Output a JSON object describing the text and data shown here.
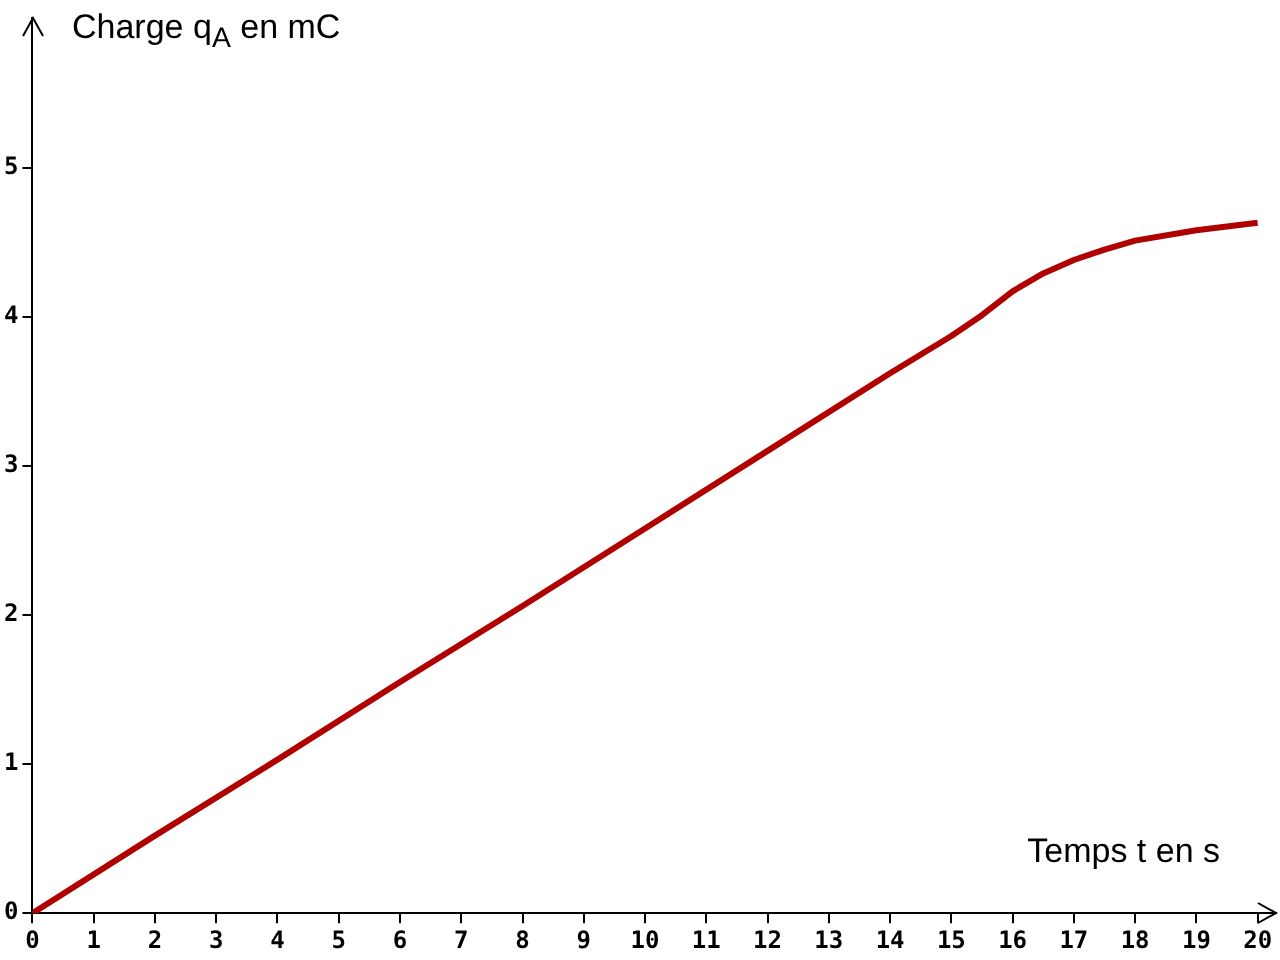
{
  "chart_data": {
    "type": "line",
    "xlabel": "Temps t en s",
    "ylabel": "Charge q$_{A}$ en mC",
    "x": [
      0,
      2,
      4,
      6,
      8,
      10,
      12,
      14,
      15,
      15.5,
      16,
      16.5,
      17,
      17.5,
      18,
      19,
      20
    ],
    "series": [
      {
        "color": "#b00000",
        "values": [
          0,
          0.52,
          1.03,
          1.55,
          2.06,
          2.58,
          3.1,
          3.62,
          3.87,
          4.01,
          4.17,
          4.29,
          4.38,
          4.45,
          4.51,
          4.58,
          4.63
        ]
      }
    ],
    "xlim": [
      0,
      20.3
    ],
    "xticks": [
      0,
      1,
      2,
      3,
      4,
      5,
      6,
      7,
      8,
      9,
      10,
      11,
      12,
      13,
      14,
      15,
      16,
      17,
      18,
      19,
      20
    ],
    "ylim": [
      0,
      6
    ],
    "yticks": [
      0,
      1,
      2,
      3,
      4,
      5
    ]
  }
}
